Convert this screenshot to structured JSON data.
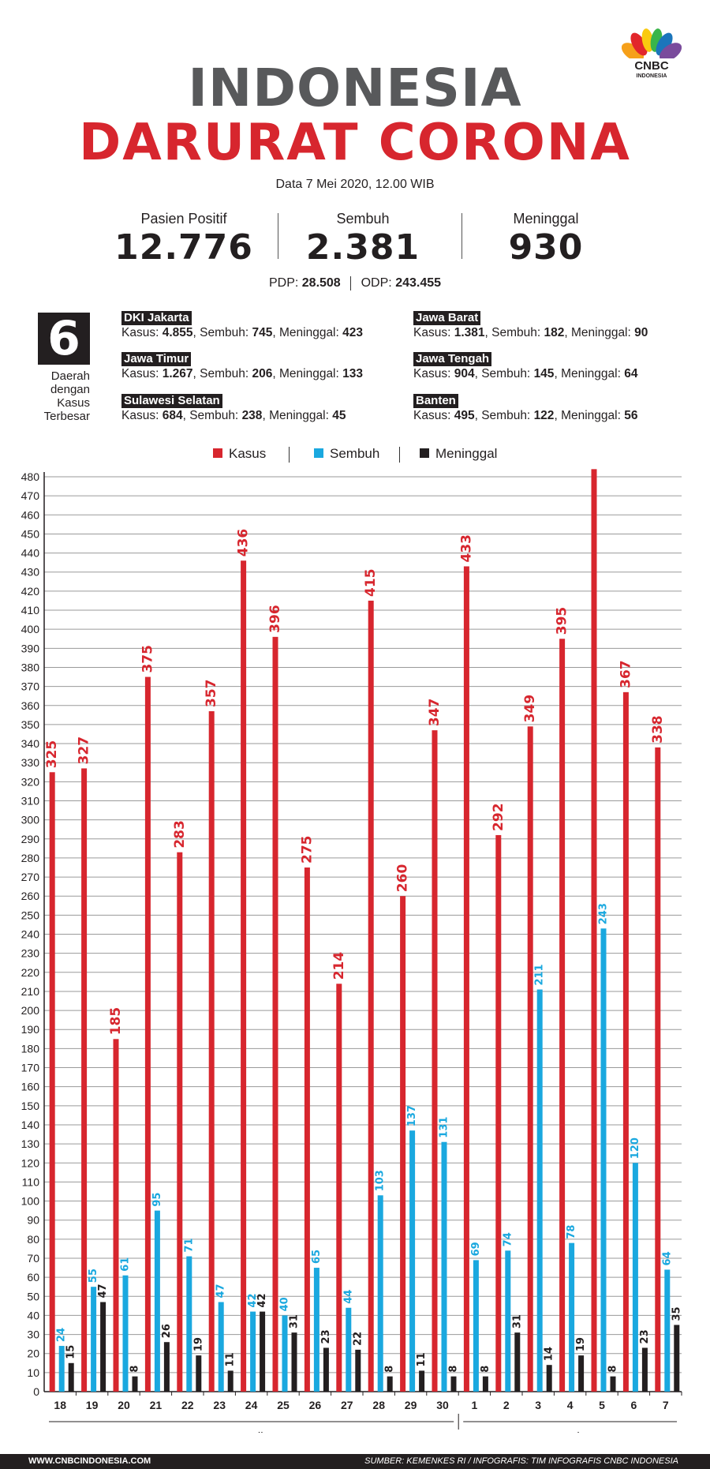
{
  "header": {
    "logo_text": "CNBC",
    "logo_sub": "INDONESIA",
    "title_line1": "INDONESIA",
    "title_line2": "DARURAT CORONA",
    "date": "Data 7 Mei 2020, 12.00 WIB"
  },
  "stats": [
    {
      "label": "Pasien Positif",
      "value": "12.776"
    },
    {
      "label": "Sembuh",
      "value": "2.381"
    },
    {
      "label": "Meninggal",
      "value": "930"
    }
  ],
  "pdp": {
    "label": "PDP:",
    "value": "28.508"
  },
  "odp": {
    "label": "ODP:",
    "value": "243.455"
  },
  "top_regions": {
    "count": "6",
    "caption": [
      "Daerah",
      "dengan",
      "Kasus",
      "Terbesar"
    ],
    "items": [
      {
        "name": "DKI Jakarta",
        "kasus": "4.855",
        "sembuh": "745",
        "meninggal": "423"
      },
      {
        "name": "Jawa Timur",
        "kasus": "1.267",
        "sembuh": "206",
        "meninggal": "133"
      },
      {
        "name": "Sulawesi Selatan",
        "kasus": "684",
        "sembuh": "238",
        "meninggal": "45"
      },
      {
        "name": "Jawa Barat",
        "kasus": "1.381",
        "sembuh": "182",
        "meninggal": "90"
      },
      {
        "name": "Jawa Tengah",
        "kasus": "904",
        "sembuh": "145",
        "meninggal": "64"
      },
      {
        "name": "Banten",
        "kasus": "495",
        "sembuh": "122",
        "meninggal": "56"
      }
    ],
    "labels": {
      "kasus": "Kasus:",
      "sembuh": "Sembuh:",
      "meninggal": "Meninggal:"
    }
  },
  "chart_data": {
    "type": "bar",
    "categories": [
      "18",
      "19",
      "20",
      "21",
      "22",
      "23",
      "24",
      "25",
      "26",
      "27",
      "28",
      "29",
      "30",
      "1",
      "2",
      "3",
      "4",
      "5",
      "6",
      "7"
    ],
    "groups": [
      {
        "label": "April",
        "categories": [
          "18",
          "19",
          "20",
          "21",
          "22",
          "23",
          "24",
          "25",
          "26",
          "27",
          "28",
          "29",
          "30"
        ]
      },
      {
        "label": "Mei",
        "categories": [
          "1",
          "2",
          "3",
          "4",
          "5",
          "6",
          "7"
        ]
      }
    ],
    "series": [
      {
        "name": "Kasus",
        "color": "#d7262e",
        "values": [
          325,
          327,
          185,
          375,
          283,
          357,
          436,
          396,
          275,
          214,
          415,
          260,
          347,
          433,
          292,
          349,
          395,
          484,
          367,
          338
        ]
      },
      {
        "name": "Sembuh",
        "color": "#1aa8df",
        "values": [
          24,
          55,
          61,
          95,
          71,
          47,
          42,
          40,
          65,
          44,
          103,
          137,
          131,
          69,
          74,
          211,
          78,
          243,
          120,
          64
        ]
      },
      {
        "name": "Meninggal",
        "color": "#231f20",
        "values": [
          15,
          47,
          8,
          26,
          19,
          11,
          42,
          31,
          23,
          22,
          8,
          11,
          8,
          8,
          31,
          14,
          19,
          8,
          23,
          35
        ]
      }
    ],
    "ylim": [
      0,
      480
    ],
    "ytick_step": 10,
    "grid": true,
    "legend_position": "top-center"
  },
  "footer": {
    "website": "WWW.CNBCINDONESIA.COM",
    "source": "SUMBER: KEMENKES RI / INFOGRAFIS: TIM INFOGRAFIS CNBC INDONESIA"
  }
}
